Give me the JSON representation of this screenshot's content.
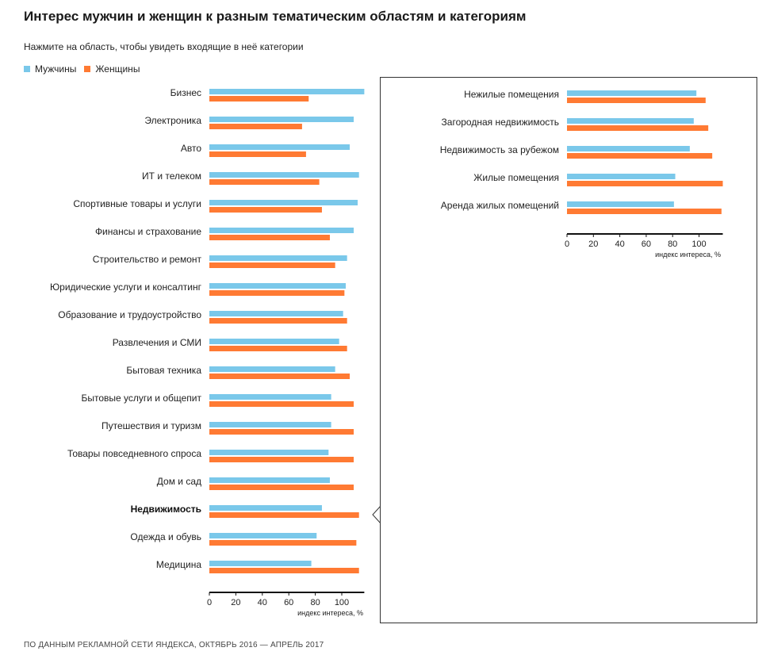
{
  "title": "Интерес мужчин и женщин к разным тематическим областям и категориям",
  "subtitle": "Нажмите на область, чтобы увидеть входящие в неё категории",
  "legend": {
    "men": "Мужчины",
    "women": "Женщины"
  },
  "colors": {
    "men": "#7ac8ea",
    "women": "#ff7a33"
  },
  "footer": "ПО ДАННЫМ РЕКЛАМНОЙ СЕТИ ЯНДЕКСА, ОКТЯБРЬ 2016 — АПРЕЛЬ 2017",
  "selected_category": "Недвижимость",
  "chart_data": [
    {
      "type": "bar",
      "orientation": "horizontal",
      "categories": [
        "Бизнес",
        "Электроника",
        "Авто",
        "ИТ и телеком",
        "Спортивные товары и услуги",
        "Финансы и страхование",
        "Строительство и ремонт",
        "Юридические услуги и консалтинг",
        "Образование и трудоустройство",
        "Развлечения и СМИ",
        "Бытовая техника",
        "Бытовые услуги и общепит",
        "Путешествия и туризм",
        "Товары повседневного спроса",
        "Дом и сад",
        "Недвижимость",
        "Одежда и обувь",
        "Медицина"
      ],
      "series": [
        {
          "name": "Мужчины",
          "values": [
            117,
            109,
            106,
            113,
            112,
            109,
            104,
            103,
            101,
            98,
            95,
            92,
            92,
            90,
            91,
            85,
            81,
            77
          ]
        },
        {
          "name": "Женщины",
          "values": [
            75,
            70,
            73,
            83,
            85,
            91,
            95,
            102,
            104,
            104,
            106,
            109,
            109,
            109,
            109,
            113,
            111,
            113
          ]
        }
      ],
      "xticks": [
        0,
        20,
        40,
        60,
        80,
        100
      ],
      "xlim": [
        0,
        117
      ],
      "xlabel": "индекс интереса, %"
    },
    {
      "type": "bar",
      "orientation": "horizontal",
      "categories": [
        "Нежилые помещения",
        "Загородная недвижимость",
        "Недвижимость за рубежом",
        "Жилые помещения",
        "Аренда жилых помещений"
      ],
      "series": [
        {
          "name": "Мужчины",
          "values": [
            98,
            96,
            93,
            82,
            81
          ]
        },
        {
          "name": "Женщины",
          "values": [
            105,
            107,
            110,
            118,
            117
          ]
        }
      ],
      "xticks": [
        0,
        20,
        40,
        60,
        80,
        100
      ],
      "xlim": [
        0,
        118
      ],
      "xlabel": "индекс интереса, %"
    }
  ]
}
